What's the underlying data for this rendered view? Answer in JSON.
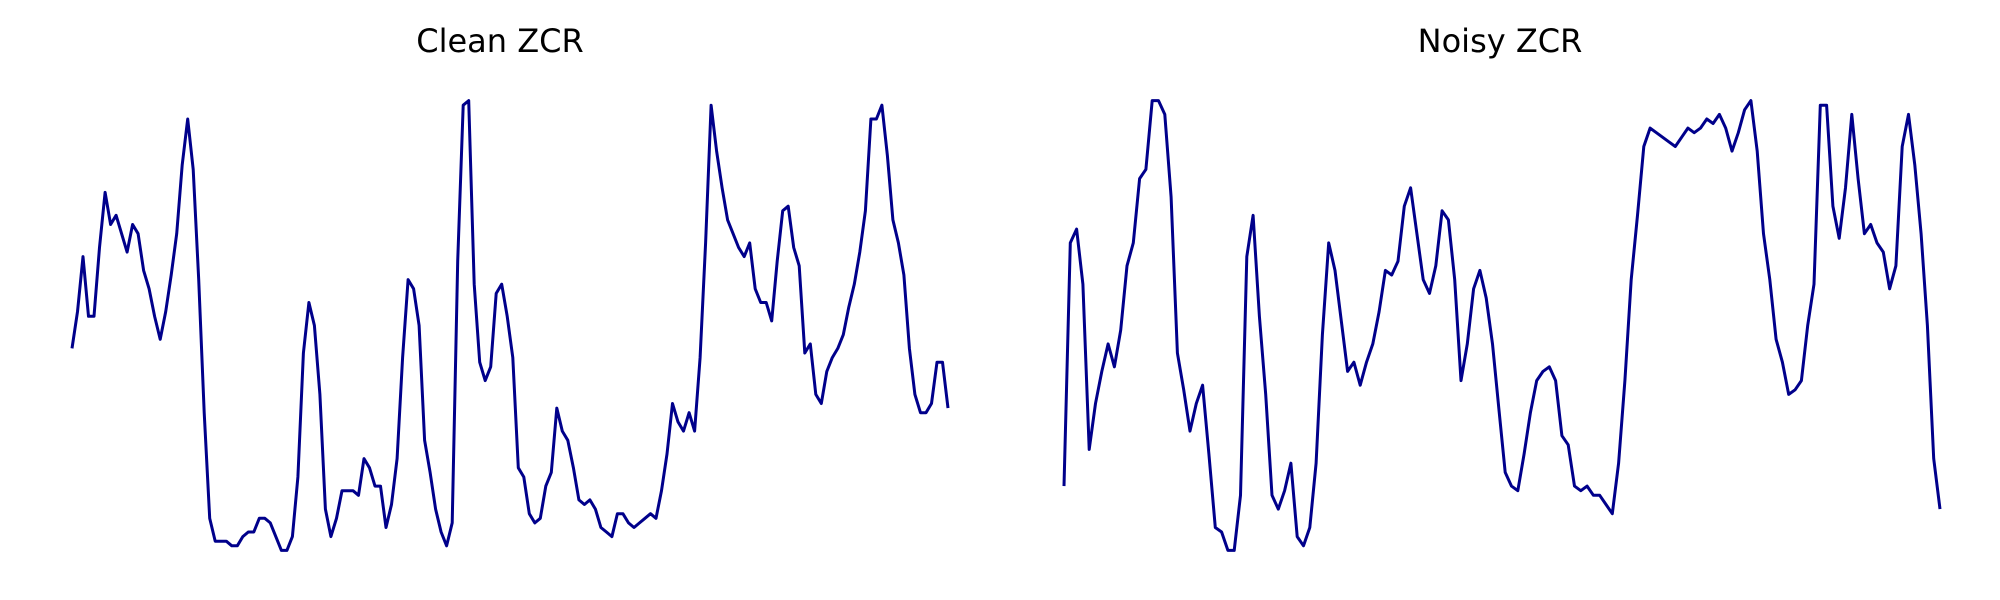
{
  "colors": {
    "line": "#00008b",
    "background": "#ffffff"
  },
  "chart_data": [
    {
      "type": "line",
      "title": "Clean ZCR",
      "xlabel": "",
      "ylabel": "",
      "axes_visible": false,
      "grid": false,
      "legend": "none",
      "ylim": [
        0,
        1
      ],
      "series": [
        {
          "values": [
            0.45,
            0.53,
            0.65,
            0.52,
            0.52,
            0.67,
            0.79,
            0.72,
            0.74,
            0.7,
            0.66,
            0.72,
            0.7,
            0.62,
            0.58,
            0.52,
            0.47,
            0.53,
            0.61,
            0.7,
            0.85,
            0.95,
            0.84,
            0.6,
            0.31,
            0.08,
            0.03,
            0.03,
            0.03,
            0.02,
            0.02,
            0.04,
            0.05,
            0.05,
            0.08,
            0.08,
            0.07,
            0.04,
            0.01,
            0.01,
            0.04,
            0.17,
            0.44,
            0.55,
            0.5,
            0.35,
            0.1,
            0.04,
            0.08,
            0.14,
            0.14,
            0.14,
            0.13,
            0.21,
            0.19,
            0.15,
            0.15,
            0.06,
            0.11,
            0.21,
            0.43,
            0.6,
            0.58,
            0.5,
            0.25,
            0.18,
            0.1,
            0.05,
            0.02,
            0.07,
            0.64,
            0.98,
            0.99,
            0.59,
            0.42,
            0.38,
            0.41,
            0.57,
            0.59,
            0.52,
            0.43,
            0.19,
            0.17,
            0.09,
            0.07,
            0.08,
            0.15,
            0.18,
            0.32,
            0.27,
            0.25,
            0.19,
            0.12,
            0.11,
            0.12,
            0.1,
            0.06,
            0.05,
            0.04,
            0.09,
            0.09,
            0.07,
            0.06,
            0.07,
            0.08,
            0.09,
            0.08,
            0.14,
            0.22,
            0.33,
            0.29,
            0.27,
            0.31,
            0.27,
            0.43,
            0.68,
            0.98,
            0.88,
            0.8,
            0.73,
            0.7,
            0.67,
            0.65,
            0.68,
            0.58,
            0.55,
            0.55,
            0.51,
            0.64,
            0.75,
            0.76,
            0.67,
            0.63,
            0.44,
            0.46,
            0.35,
            0.33,
            0.4,
            0.43,
            0.45,
            0.48,
            0.54,
            0.59,
            0.66,
            0.75,
            0.95,
            0.95,
            0.98,
            0.87,
            0.73,
            0.68,
            0.61,
            0.45,
            0.35,
            0.31,
            0.31,
            0.33,
            0.42,
            0.42,
            0.32
          ]
        }
      ]
    },
    {
      "type": "line",
      "title": "Noisy ZCR",
      "xlabel": "",
      "ylabel": "",
      "axes_visible": false,
      "grid": false,
      "legend": "none",
      "ylim": [
        0,
        1
      ],
      "series": [
        {
          "values": [
            0.15,
            0.68,
            0.71,
            0.59,
            0.23,
            0.33,
            0.4,
            0.46,
            0.41,
            0.49,
            0.63,
            0.68,
            0.82,
            0.84,
            0.99,
            0.99,
            0.96,
            0.78,
            0.44,
            0.36,
            0.27,
            0.33,
            0.37,
            0.22,
            0.06,
            0.05,
            0.01,
            0.01,
            0.13,
            0.65,
            0.74,
            0.52,
            0.35,
            0.13,
            0.1,
            0.14,
            0.2,
            0.04,
            0.02,
            0.06,
            0.2,
            0.48,
            0.68,
            0.62,
            0.51,
            0.4,
            0.42,
            0.37,
            0.42,
            0.46,
            0.53,
            0.62,
            0.61,
            0.64,
            0.76,
            0.8,
            0.7,
            0.6,
            0.57,
            0.63,
            0.75,
            0.73,
            0.6,
            0.38,
            0.46,
            0.58,
            0.62,
            0.56,
            0.46,
            0.32,
            0.18,
            0.15,
            0.14,
            0.22,
            0.31,
            0.38,
            0.4,
            0.41,
            0.38,
            0.26,
            0.24,
            0.15,
            0.14,
            0.15,
            0.13,
            0.13,
            0.11,
            0.09,
            0.2,
            0.38,
            0.6,
            0.74,
            0.89,
            0.93,
            0.92,
            0.91,
            0.9,
            0.89,
            0.91,
            0.93,
            0.92,
            0.93,
            0.95,
            0.94,
            0.96,
            0.93,
            0.88,
            0.92,
            0.97,
            0.99,
            0.88,
            0.7,
            0.6,
            0.47,
            0.42,
            0.35,
            0.36,
            0.38,
            0.5,
            0.59,
            0.98,
            0.98,
            0.76,
            0.69,
            0.8,
            0.96,
            0.82,
            0.7,
            0.72,
            0.68,
            0.66,
            0.58,
            0.63,
            0.89,
            0.96,
            0.85,
            0.7,
            0.5,
            0.21,
            0.1
          ]
        }
      ]
    }
  ]
}
